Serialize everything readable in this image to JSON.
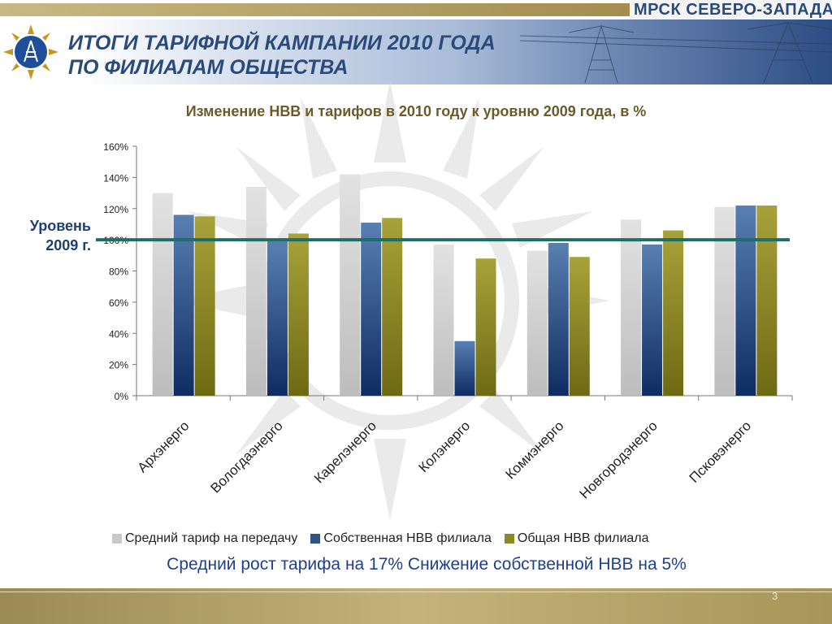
{
  "brand": {
    "name": "МРСК СЕВЕРО-ЗАПАДА"
  },
  "header": {
    "title_line1": "ИТОГИ ТАРИФНОЙ КАМПАНИИ 2010 ГОДА",
    "title_line2": "ПО ФИЛИАЛАМ ОБЩЕСТВА"
  },
  "chart_title": "Изменение НВВ и тарифов в 2010 году к уровню 2009 года, в %",
  "level_label": {
    "line1": "Уровень",
    "line2": "2009 г."
  },
  "footnote": "Средний рост тарифа на 17% Снижение собственной НВВ на 5%",
  "page_number": "3",
  "colors": {
    "accent": "#1f3f70",
    "reference_line": "#1e6e6a",
    "footer": "#b5a26a"
  },
  "chart_data": {
    "type": "bar",
    "categories": [
      "Архэнерго",
      "Вологдаэнерго",
      "Карелэнерго",
      "Колэнерго",
      "Комиэнерго",
      "Новгородэнерго",
      "Псковэнерго"
    ],
    "series": [
      {
        "name": "Средний тариф на передачу",
        "color": "#c8c8c8",
        "values": [
          130,
          134,
          142,
          97,
          93,
          113,
          121
        ]
      },
      {
        "name": "Собственная НВВ филиала",
        "color": "#2e5386",
        "values": [
          116,
          99,
          111,
          35,
          98,
          97,
          122
        ]
      },
      {
        "name": "Общая НВВ филиала",
        "color": "#8a8a28",
        "values": [
          115,
          104,
          114,
          88,
          89,
          106,
          122
        ]
      }
    ],
    "ylim": [
      0,
      160
    ],
    "yticks": [
      0,
      20,
      40,
      60,
      80,
      100,
      120,
      140,
      160
    ],
    "ytick_labels": [
      "0%",
      "20%",
      "40%",
      "60%",
      "80%",
      "100%",
      "120%",
      "140%",
      "160%"
    ],
    "reference_value": 100,
    "grid": false,
    "legend_position": "bottom"
  }
}
